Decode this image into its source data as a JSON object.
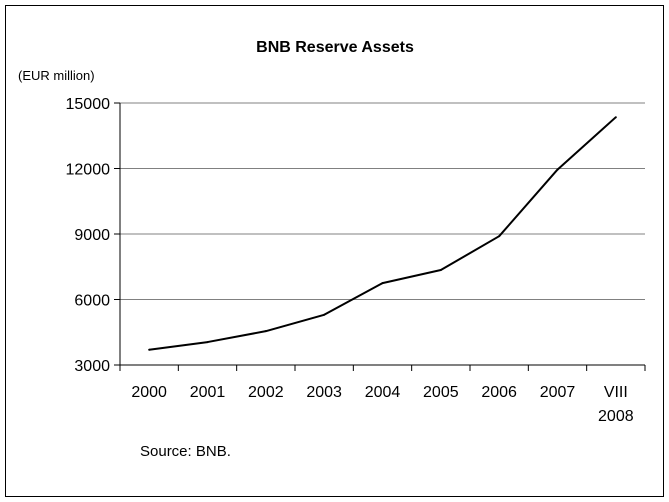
{
  "chart_data": {
    "type": "line",
    "title": "BNB Reserve Assets",
    "unit_label": "(EUR million)",
    "source": "Source: BNB.",
    "categories": [
      {
        "top": "2000",
        "bottom": ""
      },
      {
        "top": "2001",
        "bottom": ""
      },
      {
        "top": "2002",
        "bottom": ""
      },
      {
        "top": "2003",
        "bottom": ""
      },
      {
        "top": "2004",
        "bottom": ""
      },
      {
        "top": "2005",
        "bottom": ""
      },
      {
        "top": "2006",
        "bottom": ""
      },
      {
        "top": "2007",
        "bottom": ""
      },
      {
        "top": "VIII",
        "bottom": "2008"
      }
    ],
    "series": [
      {
        "values": [
          3700,
          4050,
          4550,
          5300,
          6750,
          7350,
          8900,
          11950,
          14350
        ]
      }
    ],
    "ylim": [
      3000,
      15000
    ],
    "yticks": [
      "3000",
      "6000",
      "9000",
      "12000",
      "15000"
    ],
    "grid": true,
    "line_color": "#000000",
    "grid_color": "#808080"
  }
}
